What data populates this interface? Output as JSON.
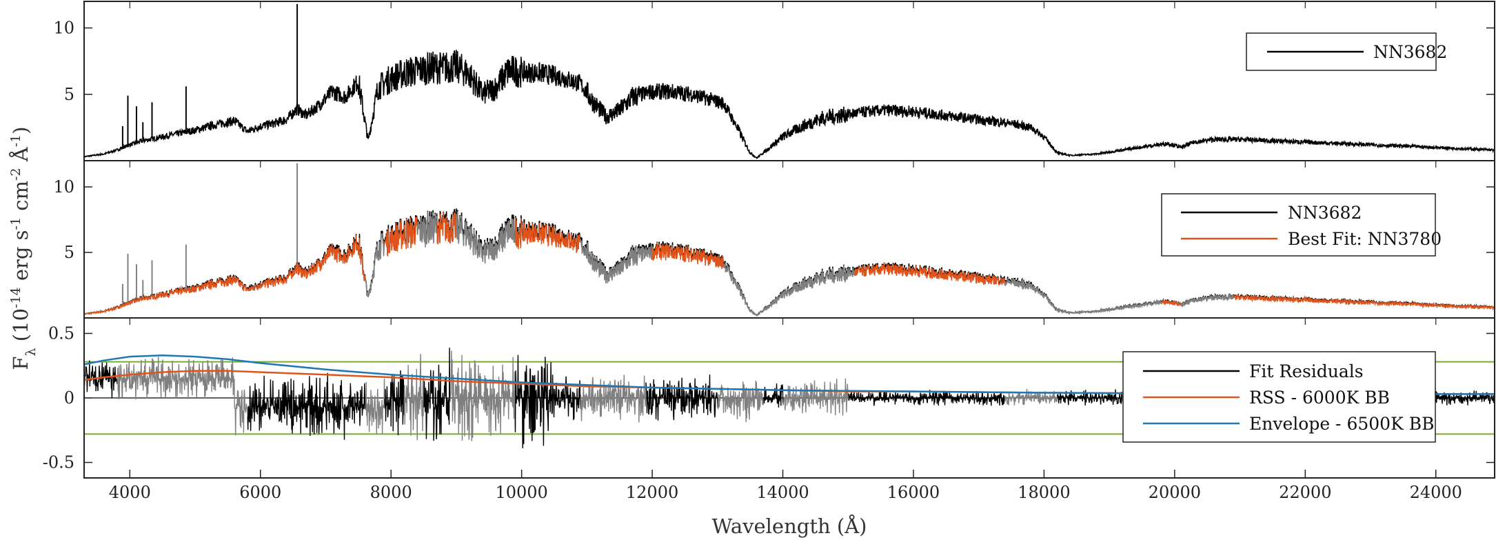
{
  "colors": {
    "spectrum": "#000000",
    "masked": "#808080",
    "fit": "#e0541c",
    "envelope": "#1f77b4",
    "threshold": "#77ac30"
  },
  "chart_data": [
    {
      "type": "line",
      "panel": "top",
      "xlim": [
        3300,
        24900
      ],
      "ylim": [
        0,
        12
      ],
      "yticks": [
        {
          "v": 5,
          "label": "5"
        },
        {
          "v": 10,
          "label": "10"
        }
      ],
      "series": [
        {
          "name": "NN3682",
          "style": "spectrum",
          "x": [
            3300,
            3600,
            3800,
            4000,
            4200,
            4500,
            4800,
            5000,
            5300,
            5600,
            5800,
            6000,
            6200,
            6400,
            6560,
            6700,
            6900,
            7100,
            7300,
            7500,
            7650,
            7800,
            8000,
            8200,
            8400,
            8600,
            8800,
            9000,
            9200,
            9400,
            9600,
            9800,
            10000,
            10300,
            10600,
            10900,
            11100,
            11300,
            11500,
            11700,
            12000,
            12300,
            12600,
            12900,
            13100,
            13300,
            13500,
            13600,
            13800,
            14000,
            14300,
            14600,
            15000,
            15300,
            15600,
            16000,
            16500,
            17000,
            17500,
            17800,
            18000,
            18200,
            18400,
            18800,
            19200,
            19600,
            19900,
            20100,
            20300,
            20600,
            21000,
            22000,
            23000,
            24000,
            24900
          ],
          "y": [
            0.3,
            0.5,
            0.8,
            1.2,
            1.5,
            1.8,
            2.1,
            2.3,
            2.7,
            3.0,
            2.2,
            2.6,
            2.8,
            3.1,
            3.9,
            3.4,
            4.2,
            5.2,
            4.8,
            6.0,
            1.5,
            5.5,
            6.2,
            6.6,
            6.8,
            7.0,
            7.0,
            7.1,
            6.5,
            5.0,
            5.5,
            6.8,
            6.7,
            6.6,
            6.3,
            5.8,
            4.4,
            3.3,
            3.8,
            4.8,
            5.2,
            5.2,
            5.0,
            4.6,
            4.3,
            2.5,
            0.6,
            0.2,
            1.0,
            1.8,
            2.6,
            3.2,
            3.5,
            3.7,
            3.8,
            3.7,
            3.4,
            3.1,
            2.8,
            2.5,
            1.8,
            0.6,
            0.4,
            0.5,
            0.8,
            1.1,
            1.3,
            1.0,
            1.4,
            1.6,
            1.6,
            1.4,
            1.2,
            1.0,
            0.8
          ],
          "noise": 0.12
        }
      ],
      "legend": {
        "placement": "top-right",
        "entries": [
          "NN3682"
        ]
      }
    },
    {
      "type": "line",
      "panel": "middle",
      "xlim": [
        3300,
        24900
      ],
      "ylim": [
        0,
        12
      ],
      "yticks": [
        {
          "v": 5,
          "label": "5"
        },
        {
          "v": 10,
          "label": "10"
        }
      ],
      "series": [
        {
          "name": "NN3682",
          "style": "spectrum",
          "same_as_top": true
        },
        {
          "name": "Best Fit: NN3780",
          "style": "fit",
          "scale": 0.97
        }
      ],
      "masked_ranges": [
        [
          7600,
          7900
        ],
        [
          8400,
          8700
        ],
        [
          9000,
          9900
        ],
        [
          10900,
          12000
        ],
        [
          13100,
          15100
        ],
        [
          17400,
          19800
        ],
        [
          20100,
          20900
        ]
      ],
      "legend": {
        "placement": "top-right",
        "entries": [
          "NN3682",
          "Best Fit: NN3780"
        ]
      }
    },
    {
      "type": "line",
      "panel": "bottom",
      "xlim": [
        3300,
        24900
      ],
      "ylim": [
        -0.62,
        0.62
      ],
      "yticks": [
        {
          "v": 0.5,
          "label": "0.5"
        },
        {
          "v": 0,
          "label": "0"
        },
        {
          "v": -0.5,
          "label": "-0.5"
        }
      ],
      "xticks": [
        4000,
        6000,
        8000,
        10000,
        12000,
        14000,
        16000,
        18000,
        20000,
        22000,
        24000
      ],
      "xlabel": "Wavelength (Å)",
      "threshold_lines": [
        0.28,
        -0.28
      ],
      "series": [
        {
          "name": "Fit Residuals",
          "style": "spectrum"
        },
        {
          "name": "RSS - 6000K BB",
          "style": "fit",
          "x": [
            3300,
            3600,
            4000,
            4500,
            5000,
            5500,
            6000,
            7000,
            8000,
            9000,
            10000,
            11000,
            12000,
            13000,
            14000,
            15000,
            16000,
            18000,
            20000,
            22000,
            24000,
            24900
          ],
          "y": [
            0.14,
            0.16,
            0.18,
            0.2,
            0.21,
            0.21,
            0.2,
            0.18,
            0.16,
            0.13,
            0.11,
            0.09,
            0.08,
            0.07,
            0.06,
            0.05,
            0.05,
            0.04,
            0.035,
            0.03,
            0.03,
            0.03
          ]
        },
        {
          "name": "Envelope - 6500K BB",
          "style": "envelope",
          "x": [
            3300,
            3600,
            4000,
            4500,
            5000,
            5500,
            6000,
            7000,
            8000,
            9000,
            10000,
            11000,
            12000,
            13000,
            14000,
            15000,
            16000,
            18000,
            20000,
            22000,
            24000,
            24900
          ],
          "y": [
            0.26,
            0.29,
            0.32,
            0.33,
            0.32,
            0.3,
            0.27,
            0.22,
            0.18,
            0.15,
            0.12,
            0.1,
            0.08,
            0.07,
            0.06,
            0.055,
            0.05,
            0.04,
            0.035,
            0.03,
            0.03,
            0.03
          ]
        }
      ],
      "masked_ranges": [
        [
          3800,
          5600
        ],
        [
          5600,
          5800
        ],
        [
          7600,
          7900
        ],
        [
          8200,
          8500
        ],
        [
          8900,
          9900
        ],
        [
          10900,
          11900
        ],
        [
          13000,
          13700
        ],
        [
          14000,
          15000
        ],
        [
          17400,
          18200
        ],
        [
          19200,
          23500
        ]
      ],
      "legend": {
        "placement": "top-right",
        "entries": [
          "Fit Residuals",
          "RSS - 6000K BB",
          "Envelope - 6500K BB"
        ]
      }
    }
  ],
  "ylabel": "F_λ (10^{-14} erg s^{-1} cm^{-2} Å^{-1})"
}
